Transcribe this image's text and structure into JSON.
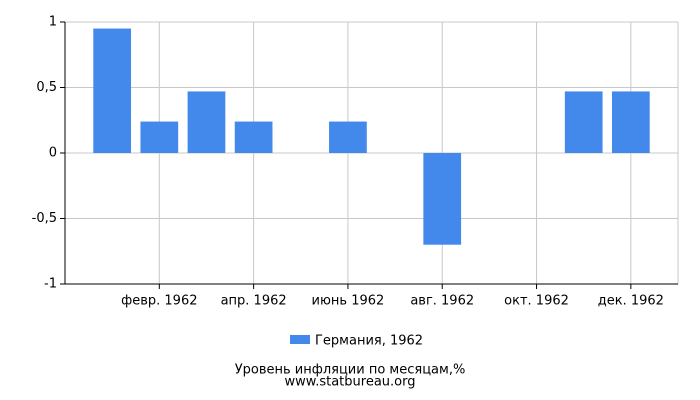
{
  "chart_data": {
    "type": "bar",
    "title": "Уровень инфляции по месяцам,%",
    "source": "www.statbureau.org",
    "categories": [
      null,
      "февр. 1962",
      null,
      "апр. 1962",
      null,
      "июнь 1962",
      null,
      "авг. 1962",
      null,
      "окт. 1962",
      null,
      "дек. 1962"
    ],
    "series": [
      {
        "name": "Германия, 1962",
        "color": "#4389ec",
        "values": [
          0.95,
          0.24,
          0.47,
          0.24,
          0,
          0.24,
          0,
          -0.7,
          0,
          0,
          0.47,
          0.47
        ]
      }
    ],
    "ylim": [
      -1,
      1
    ],
    "yticks": [
      -1,
      {
        "value": -0.5,
        "label": "-0,5"
      },
      0,
      {
        "value": 0.5,
        "label": "0,5"
      },
      1
    ],
    "grid": true
  }
}
